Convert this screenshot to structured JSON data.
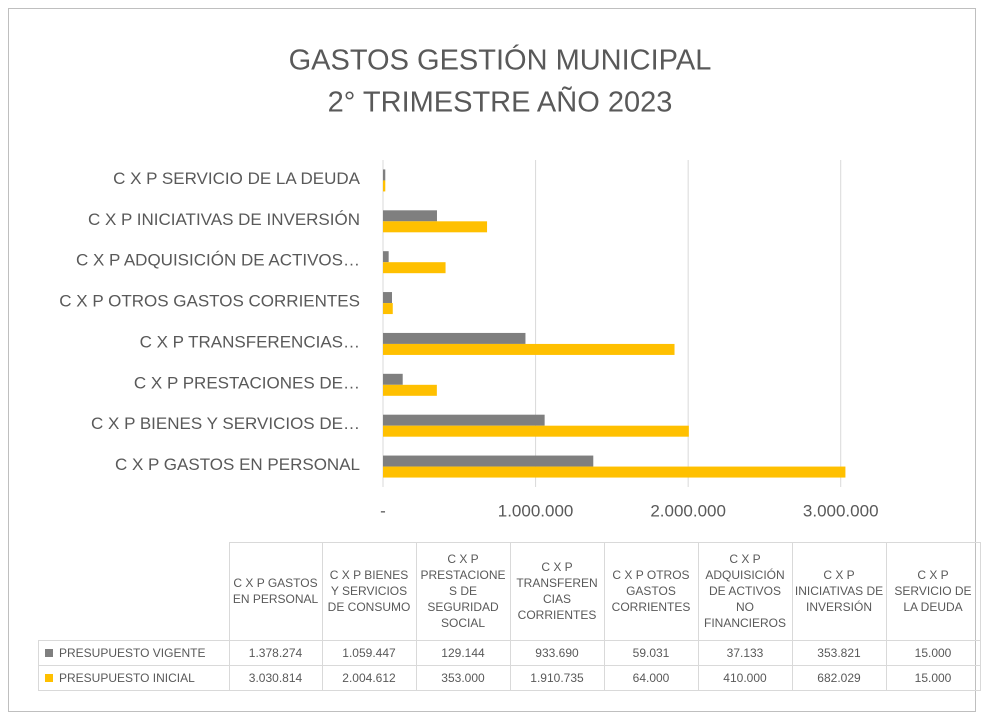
{
  "chart_data": {
    "type": "barh",
    "title": [
      "GASTOS GESTIÓN MUNICIPAL",
      "2° TRIMESTRE AÑO 2023"
    ],
    "categories": [
      "C X P GASTOS EN PERSONAL",
      "C X P BIENES Y SERVICIOS DE CONSUMO",
      "C X P PRESTACIONES DE SEGURIDAD SOCIAL",
      "C X P TRANSFERENCIAS CORRIENTES",
      "C X P OTROS GASTOS CORRIENTES",
      "C X P ADQUISICIÓN DE ACTIVOS NO FINANCIEROS",
      "C X P INICIATIVAS DE INVERSIÓN",
      "C X P SERVICIO DE LA DEUDA"
    ],
    "axis_labels": [
      "C X P GASTOS EN PERSONAL",
      "C X P BIENES Y SERVICIOS DE…",
      "C X P PRESTACIONES DE…",
      "C X P TRANSFERENCIAS…",
      "C X P OTROS GASTOS CORRIENTES",
      "C X P ADQUISICIÓN DE ACTIVOS…",
      "C X P INICIATIVAS DE INVERSIÓN",
      "C X P SERVICIO DE LA DEUDA"
    ],
    "series": [
      {
        "name": "PRESUPUESTO VIGENTE",
        "color": "#7f7f7f",
        "values": [
          1378274,
          1059447,
          129144,
          933690,
          59031,
          37133,
          353821,
          15000
        ],
        "value_labels": [
          "1.378.274",
          "1.059.447",
          "129.144",
          "933.690",
          "59.031",
          "37.133",
          "353.821",
          "15.000"
        ]
      },
      {
        "name": "PRESUPUESTO INICIAL",
        "color": "#ffc000",
        "values": [
          3030814,
          2004612,
          353000,
          1910735,
          64000,
          410000,
          682029,
          15000
        ],
        "value_labels": [
          "3.030.814",
          "2.004.612",
          "353.000",
          "1.910.735",
          "64.000",
          "410.000",
          "682.029",
          "15.000"
        ]
      }
    ],
    "xlim": [
      0,
      3500000
    ],
    "xticks": [
      {
        "value": 0,
        "label": "-"
      },
      {
        "value": 1000000,
        "label": "1.000.000"
      },
      {
        "value": 2000000,
        "label": "2.000.000"
      },
      {
        "value": 3000000,
        "label": "3.000.000"
      }
    ],
    "grid": true
  }
}
